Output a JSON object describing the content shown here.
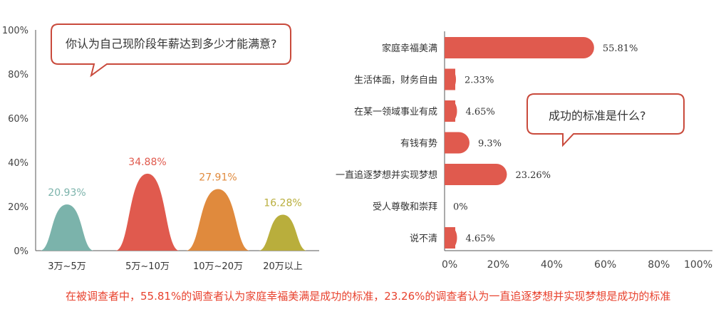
{
  "colors": {
    "accent": "#e05a4e",
    "bubble_border": "#c94a3c",
    "axis": "#555555",
    "text": "#333333",
    "caption": "#e8422e"
  },
  "chart_data": [
    {
      "type": "bar",
      "title": "",
      "xlabel": "",
      "ylabel": "",
      "ylim": [
        0,
        100
      ],
      "y_ticks": [
        "0%",
        "20%",
        "40%",
        "60%",
        "80%",
        "100%"
      ],
      "categories": [
        "3万~5万",
        "5万~10万",
        "10万~20万",
        "20万以上"
      ],
      "values": [
        20.93,
        34.88,
        27.91,
        16.28
      ],
      "value_labels": [
        "20.93%",
        "34.88%",
        "27.91%",
        "16.28%"
      ],
      "colors": [
        "#7bb3ab",
        "#e05a4e",
        "#e08a3d",
        "#b9ae3c"
      ],
      "annotation": "你认为自己现阶段年薪达到多少才能满意?",
      "grid": false
    },
    {
      "type": "bar",
      "orientation": "horizontal",
      "title": "",
      "xlabel": "",
      "ylabel": "",
      "xlim": [
        0,
        100
      ],
      "x_ticks": [
        "0%",
        "20%",
        "40%",
        "60%",
        "80%",
        "100%"
      ],
      "categories": [
        "家庭幸福美满",
        "生活体面，财务自由",
        "在某一领域事业有成",
        "有钱有势",
        "一直追逐梦想并实现梦想",
        "受人尊敬和崇拜",
        "说不清"
      ],
      "values": [
        55.81,
        2.33,
        4.65,
        9.3,
        23.26,
        0,
        4.65
      ],
      "value_labels": [
        "55.81%",
        "2.33%",
        "4.65%",
        "9.3%",
        "23.26%",
        "0%",
        "4.65%"
      ],
      "color": "#e05a4e",
      "annotation": "成功的标准是什么?",
      "grid": false
    }
  ],
  "caption": "在被调查者中，55.81%的调查者认为家庭幸福美满是成功的标准，23.26%的调查者认为一直追逐梦想并实现梦想是成功的标准"
}
